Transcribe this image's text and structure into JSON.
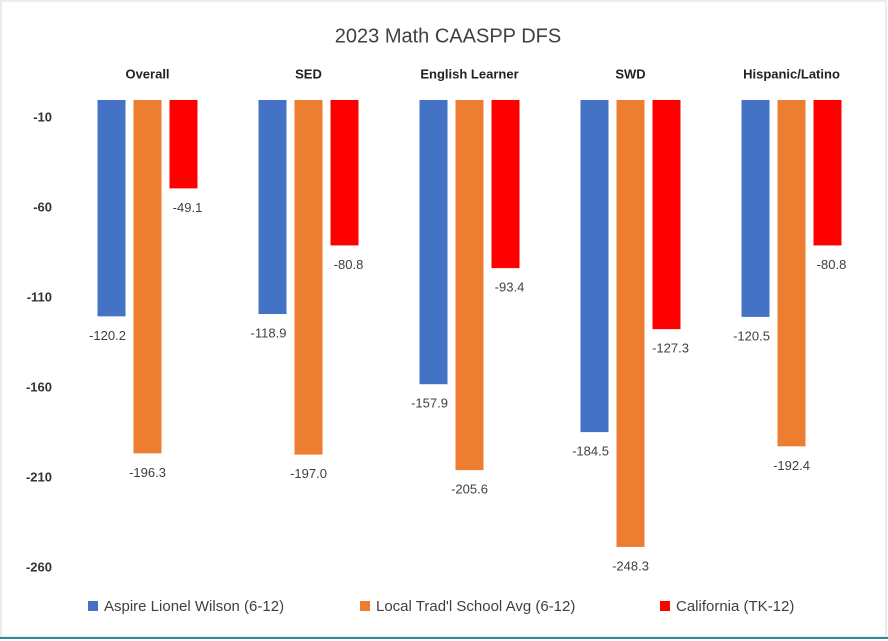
{
  "chart_data": {
    "type": "bar",
    "title": "2023 Math CAASPP DFS",
    "categories": [
      "Overall",
      "SED",
      "English Learner",
      "SWD",
      "Hispanic/Latino"
    ],
    "series": [
      {
        "name": "Aspire Lionel Wilson (6-12)",
        "color": "#4472c4",
        "values": [
          -120.2,
          -118.9,
          -157.9,
          -184.5,
          -120.5
        ],
        "value_labels": [
          "-120.2",
          "-118.9",
          "-157.9",
          "-184.5",
          "-120.5"
        ]
      },
      {
        "name": "Local Trad'l School Avg (6-12)",
        "color": "#ed7d31",
        "values": [
          -196.3,
          -197.0,
          -205.6,
          -248.3,
          -192.4
        ],
        "value_labels": [
          "-196.3",
          "-197.0",
          "-205.6",
          "-248.3",
          "-192.4"
        ]
      },
      {
        "name": "California (TK-12)",
        "color": "#ff0000",
        "values": [
          -49.1,
          -80.8,
          -93.4,
          -127.3,
          -80.8
        ],
        "value_labels": [
          "-49.1",
          "-80.8",
          "-93.4",
          "-127.3",
          "-80.8"
        ]
      }
    ],
    "ylim": [
      -280,
      0
    ],
    "yticks": [
      -10,
      -60,
      -110,
      -160,
      -210,
      -260
    ],
    "grid": false
  }
}
